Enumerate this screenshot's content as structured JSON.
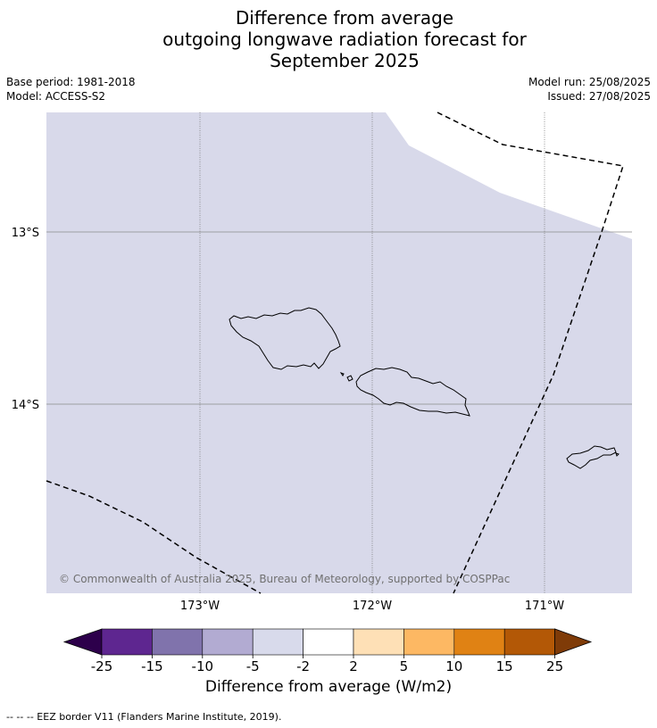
{
  "title": {
    "line1": "Difference from average",
    "line2": "outgoing longwave radiation forecast for",
    "line3": "September 2025"
  },
  "meta": {
    "base_period": "Base period: 1981-2018",
    "model": "Model: ACCESS-S2",
    "model_run": "Model run: 25/08/2025",
    "issued": "Issued: 27/08/2025"
  },
  "map": {
    "fill_color": "#d8d9ea",
    "lat_labels": [
      "13°S",
      "14°S"
    ],
    "lon_labels": [
      "173°W",
      "172°W",
      "171°W"
    ],
    "copyright": "© Commonwealth of Australia 2025, Bureau of Meteorology, supported by COSPPac"
  },
  "colorbar": {
    "ticks": [
      "-25",
      "-15",
      "-10",
      "-5",
      "-2",
      "2",
      "5",
      "10",
      "15",
      "25"
    ],
    "colors": [
      "#2d004b",
      "#5e2690",
      "#8073ac",
      "#b2abd2",
      "#d8daeb",
      "#ffffff",
      "#fee0b6",
      "#fdb863",
      "#e08214",
      "#b35806",
      "#7f3b08"
    ],
    "label": "Difference from average (W/m2)"
  },
  "footer": "--  --  -- EEZ border V11 (Flanders Marine Institute, 2019)."
}
